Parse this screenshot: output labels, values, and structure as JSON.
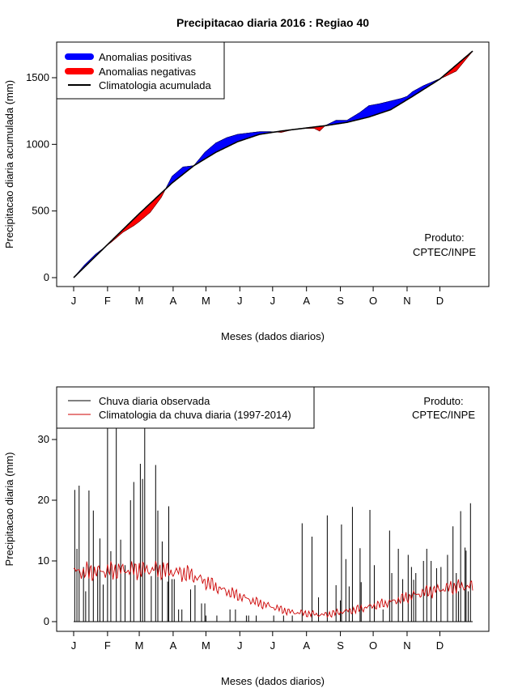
{
  "title": "Precipitacao diaria 2016 : Regiao 40",
  "colors": {
    "positive": "#0000ff",
    "negative": "#ff0000",
    "climatology": "#000000",
    "observed": "#000000",
    "clim_daily": "#cc0000"
  },
  "chart_data": [
    {
      "type": "area",
      "title": "Precipitacao diaria 2016 : Regiao 40",
      "xlabel": "Meses (dados diarios)",
      "ylabel": "Precipitacao diaria acumulada (mm)",
      "ylim": [
        0,
        1750
      ],
      "yticks": [
        0,
        500,
        1000,
        1500
      ],
      "month_labels": [
        "J",
        "F",
        "M",
        "A",
        "M",
        "J",
        "J",
        "A",
        "S",
        "O",
        "N",
        "D"
      ],
      "legend": [
        "Anomalias positivas",
        "Anomalias negativas",
        "Climatologia acumulada"
      ],
      "annotation": [
        "Produto:",
        "CPTEC/INPE"
      ],
      "climatology_cumulative": {
        "day": [
          0,
          30,
          60,
          90,
          110,
          130,
          150,
          170,
          190,
          210,
          230,
          250,
          270,
          290,
          310,
          335,
          365
        ],
        "mm": [
          0,
          240,
          480,
          710,
          840,
          940,
          1020,
          1075,
          1100,
          1120,
          1140,
          1165,
          1205,
          1260,
          1360,
          1490,
          1700
        ]
      },
      "observed_cumulative": {
        "day": [
          0,
          10,
          20,
          35,
          45,
          55,
          60,
          70,
          80,
          90,
          100,
          110,
          120,
          130,
          140,
          150,
          160,
          170,
          180,
          190,
          200,
          210,
          220,
          225,
          230,
          240,
          250,
          258,
          262,
          270,
          280,
          290,
          300,
          305,
          310,
          320,
          330,
          340,
          350,
          365
        ],
        "mm": [
          0,
          95,
          175,
          270,
          340,
          390,
          420,
          490,
          600,
          760,
          830,
          840,
          940,
          1010,
          1050,
          1075,
          1085,
          1095,
          1095,
          1090,
          1110,
          1120,
          1120,
          1100,
          1140,
          1180,
          1180,
          1220,
          1240,
          1290,
          1305,
          1325,
          1345,
          1360,
          1395,
          1440,
          1475,
          1510,
          1550,
          1700
        ]
      }
    },
    {
      "type": "line",
      "xlabel": "Meses (dados diarios)",
      "ylabel": "Precipitacao diaria (mm)",
      "ylim": [
        0,
        38
      ],
      "yticks": [
        0,
        10,
        20,
        30
      ],
      "month_labels": [
        "J",
        "F",
        "M",
        "A",
        "M",
        "J",
        "J",
        "A",
        "S",
        "O",
        "N",
        "D"
      ],
      "legend": [
        "Chuva diaria observada",
        "Climatologia da chuva diaria (1997-2014)"
      ],
      "annotation": [
        "Produto:",
        "CPTEC/INPE"
      ],
      "observed_daily_peaks": {
        "day": [
          1,
          3,
          5,
          9,
          11,
          14,
          18,
          22,
          24,
          27,
          31,
          34,
          39,
          43,
          47,
          52,
          55,
          61,
          63,
          65,
          71,
          75,
          77,
          81,
          86,
          87,
          90,
          92,
          96,
          99,
          107,
          111,
          117,
          120,
          121,
          131,
          143,
          148,
          158,
          160,
          167,
          183,
          192,
          200,
          209,
          218,
          224,
          232,
          240,
          244,
          245,
          249,
          252,
          255,
          262,
          263,
          271,
          275,
          283,
          289,
          291,
          297,
          301,
          306,
          309,
          311,
          313,
          320,
          323,
          327,
          332,
          336,
          342,
          347,
          350,
          352,
          354,
          358,
          359,
          361,
          363
        ],
        "mm": [
          21.7,
          12,
          22.4,
          9,
          5,
          21.6,
          18.3,
          8.6,
          13.7,
          6.1,
          33,
          11.6,
          33,
          13.5,
          9.3,
          20,
          23,
          26,
          23.5,
          33,
          7.5,
          25.8,
          18.3,
          13.2,
          6.6,
          19,
          7,
          7,
          2,
          2,
          5.3,
          6,
          3,
          3,
          1,
          1,
          2,
          2,
          1,
          1,
          1,
          1,
          1,
          1,
          16.2,
          14,
          4,
          17.5,
          6,
          3.5,
          16,
          10.3,
          5.8,
          18.9,
          12.1,
          6.5,
          18.4,
          9.3,
          2,
          15,
          8,
          12,
          7,
          11,
          9,
          6.9,
          8,
          10,
          12,
          10,
          8.8,
          9,
          11,
          15.7,
          8,
          5,
          18.2,
          12.2,
          11.7,
          5,
          19.5
        ]
      },
      "climatology_daily_mean_by_month": [
        8.2,
        8.5,
        8.6,
        7.8,
        5.2,
        3.2,
        1.6,
        1.1,
        2.0,
        3.2,
        4.8,
        5.8
      ]
    }
  ]
}
